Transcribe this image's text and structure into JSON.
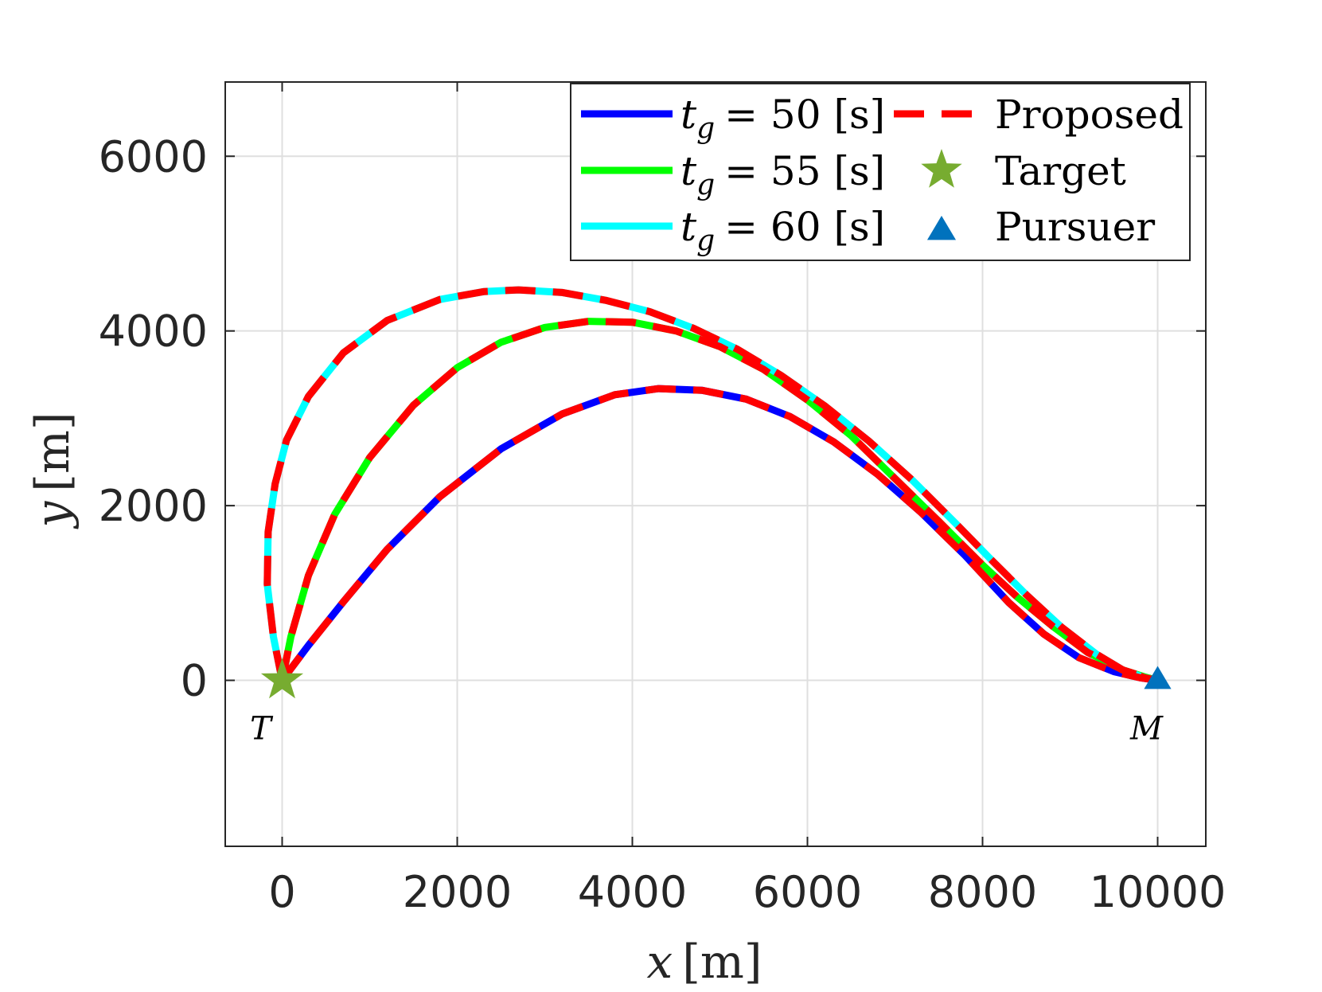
{
  "chart_data": {
    "type": "line",
    "title": "",
    "xlabel": {
      "var": "x",
      "unit": "[m]"
    },
    "ylabel": {
      "var": "y",
      "unit": "[m]"
    },
    "xlim": [
      -650,
      10550
    ],
    "ylim": [
      -1900,
      6850
    ],
    "xticks": [
      0,
      2000,
      4000,
      6000,
      8000,
      10000
    ],
    "yticks": [
      0,
      2000,
      4000,
      6000
    ],
    "grid": true,
    "legend": {
      "placement": "top-right",
      "columns": 2,
      "entries": [
        {
          "key": "tg50",
          "var": "t",
          "sub": "g",
          "rest": "= 50 [s]"
        },
        {
          "key": "tg55",
          "var": "t",
          "sub": "g",
          "rest": "= 55 [s]"
        },
        {
          "key": "tg60",
          "var": "t",
          "sub": "g",
          "rest": "= 60 [s]"
        },
        {
          "key": "proposed",
          "text": "Proposed"
        },
        {
          "key": "target",
          "text": "Target"
        },
        {
          "key": "pursuer",
          "text": "Pursuer"
        }
      ]
    },
    "series": [
      {
        "key": "tg50",
        "color": "#0000ff",
        "x": [
          0,
          300,
          700,
          1200,
          1800,
          2500,
          3200,
          3800,
          4300,
          4800,
          5300,
          5800,
          6300,
          6800,
          7300,
          7800,
          8300,
          8700,
          9100,
          9500,
          9800,
          10000
        ],
        "y": [
          0,
          400,
          900,
          1500,
          2100,
          2650,
          3050,
          3270,
          3340,
          3320,
          3220,
          3020,
          2730,
          2360,
          1920,
          1430,
          890,
          530,
          260,
          100,
          30,
          0
        ]
      },
      {
        "key": "tg55",
        "color": "#00ff00",
        "x": [
          0,
          100,
          300,
          600,
          1000,
          1500,
          2000,
          2500,
          3000,
          3500,
          4000,
          4500,
          5000,
          5500,
          6000,
          6500,
          7000,
          7500,
          8000,
          8400,
          8800,
          9200,
          9600,
          9850,
          10000
        ],
        "y": [
          0,
          500,
          1200,
          1900,
          2550,
          3150,
          3580,
          3870,
          4040,
          4110,
          4100,
          4000,
          3820,
          3560,
          3210,
          2800,
          2310,
          1820,
          1320,
          950,
          620,
          320,
          120,
          40,
          0
        ]
      },
      {
        "key": "tg60",
        "color": "#00ffff",
        "x": [
          0,
          -100,
          -170,
          -160,
          -80,
          50,
          300,
          700,
          1200,
          1800,
          2300,
          2700,
          3200,
          3700,
          4200,
          4700,
          5200,
          5700,
          6200,
          6700,
          7200,
          7700,
          8100,
          8500,
          8900,
          9300,
          9600,
          9850,
          10000
        ],
        "y": [
          0,
          500,
          1100,
          1700,
          2250,
          2750,
          3250,
          3750,
          4120,
          4360,
          4450,
          4470,
          4440,
          4350,
          4220,
          4030,
          3790,
          3490,
          3140,
          2740,
          2290,
          1790,
          1380,
          980,
          610,
          300,
          120,
          30,
          0
        ]
      }
    ],
    "proposed": {
      "color": "#ff0000"
    },
    "points": [
      {
        "key": "target",
        "label": "T",
        "x": 0,
        "y": 0,
        "marker": "star",
        "color": "#77ac30"
      },
      {
        "key": "pursuer",
        "label": "M",
        "x": 10000,
        "y": 0,
        "marker": "triangle",
        "color": "#0072bd"
      }
    ]
  }
}
